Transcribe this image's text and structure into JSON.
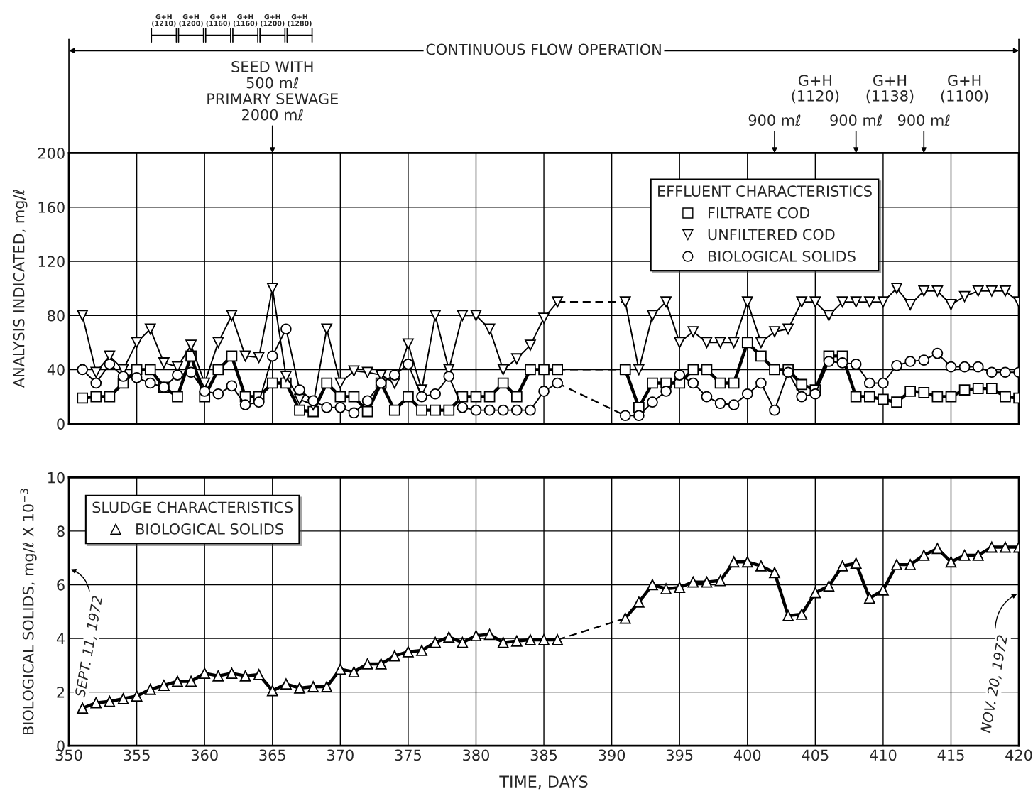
{
  "chart_data": [
    {
      "type": "line",
      "ylabel": "ANALYSIS INDICATED, mg/ℓ",
      "legend_title": "EFFLUENT CHARACTERISTICS",
      "legend": "top right",
      "grid": true,
      "tick_labels": "y",
      "xlim": [
        350,
        420
      ],
      "xticks": [
        350,
        355,
        360,
        365,
        370,
        375,
        380,
        385,
        390,
        395,
        400,
        405,
        410,
        415,
        420
      ],
      "ylim": [
        0,
        200
      ],
      "yticks": [
        0,
        40,
        80,
        120,
        160,
        200
      ],
      "x": [
        351,
        352,
        353,
        354,
        355,
        356,
        357,
        358,
        359,
        360,
        361,
        362,
        363,
        364,
        365,
        366,
        367,
        368,
        369,
        370,
        371,
        372,
        373,
        374,
        375,
        376,
        377,
        378,
        379,
        380,
        381,
        382,
        383,
        384,
        385,
        386,
        387,
        388,
        389,
        390,
        391,
        392,
        393,
        394,
        395,
        396,
        397,
        398,
        399,
        400,
        401,
        402,
        403,
        404,
        405,
        406,
        407,
        408,
        409,
        410,
        411,
        412,
        413,
        414,
        415,
        416,
        417,
        418,
        419,
        420
      ],
      "series": [
        {
          "name": "FILTRATE COD",
          "color": "#000000",
          "marker": "square",
          "values": [
            19,
            20,
            20,
            30,
            40,
            40,
            27,
            20,
            50,
            20,
            40,
            50,
            20,
            20,
            30,
            30,
            10,
            9,
            30,
            20,
            20,
            9,
            30,
            10,
            20,
            10,
            10,
            10,
            20,
            20,
            20,
            30,
            20,
            40,
            40,
            40,
            null,
            null,
            null,
            null,
            40,
            12,
            30,
            30,
            30,
            40,
            40,
            30,
            30,
            60,
            50,
            40,
            40,
            29,
            25,
            50,
            50,
            20,
            20,
            18,
            16,
            24,
            23,
            20,
            20,
            25,
            26,
            26,
            20,
            19
          ]
        },
        {
          "name": "UNFILTERED COD",
          "color": "#000000",
          "marker": "triangle_down",
          "values": [
            80,
            38,
            50,
            40,
            60,
            70,
            45,
            42,
            58,
            30,
            60,
            80,
            50,
            49,
            100,
            35,
            18,
            14,
            70,
            30,
            39,
            38,
            36,
            30,
            59,
            25,
            80,
            40,
            80,
            80,
            70,
            40,
            48,
            58,
            78,
            90,
            null,
            null,
            null,
            null,
            90,
            40,
            80,
            90,
            60,
            68,
            60,
            60,
            60,
            90,
            60,
            68,
            70,
            90,
            90,
            80,
            90,
            90,
            90,
            90,
            100,
            88,
            98,
            98,
            88,
            94,
            98,
            98,
            98,
            90
          ]
        },
        {
          "name": "BIOLOGICAL SOLIDS",
          "color": "#000000",
          "marker": "circle",
          "values": [
            40,
            30,
            44,
            35,
            34,
            30,
            27,
            36,
            38,
            24,
            22,
            28,
            14,
            16,
            50,
            70,
            25,
            17,
            12,
            12,
            8,
            17,
            30,
            36,
            44,
            20,
            22,
            35,
            12,
            10,
            10,
            10,
            10,
            10,
            24,
            30,
            null,
            null,
            null,
            null,
            6,
            6,
            16,
            24,
            36,
            30,
            20,
            15,
            14,
            22,
            30,
            10,
            38,
            20,
            22,
            46,
            45,
            44,
            30,
            30,
            43,
            46,
            47,
            52,
            42,
            42,
            42,
            38,
            38,
            38
          ]
        }
      ],
      "annotations": [
        "CONTINUOUS FLOW OPERATION",
        "G+H\n(1210)",
        "G+H\n(1200)",
        "G+H\n(1160)",
        "G+H\n(1160)",
        "G+H\n(1200)",
        "G+H\n(1280)",
        "SEED WITH\n500 mℓ\nPRIMARY SEWAGE\n2000 mℓ",
        "G+H\n(1120)",
        "900 mℓ",
        "G+H\n(1138)",
        "900 mℓ",
        "900 mℓ",
        "G+H\n(1100)"
      ]
    },
    {
      "type": "line",
      "xlabel": "TIME, DAYS",
      "ylabel": "BIOLOGICAL SOLIDS, mg/ℓ X 10$^{−3}$",
      "legend_title": "SLUDGE CHARACTERISTICS",
      "legend": "top left",
      "grid": true,
      "xlim": [
        350,
        420
      ],
      "xticks": [
        350,
        355,
        360,
        365,
        370,
        375,
        380,
        385,
        390,
        395,
        400,
        405,
        410,
        415,
        420
      ],
      "ylim": [
        0,
        10
      ],
      "yticks": [
        0,
        2,
        4,
        6,
        8,
        10
      ],
      "x": [
        351,
        352,
        353,
        354,
        355,
        356,
        357,
        358,
        359,
        360,
        361,
        362,
        363,
        364,
        365,
        366,
        367,
        368,
        369,
        370,
        371,
        372,
        373,
        374,
        375,
        376,
        377,
        378,
        379,
        380,
        381,
        382,
        383,
        384,
        385,
        386,
        387,
        388,
        389,
        390,
        391,
        392,
        393,
        394,
        395,
        396,
        397,
        398,
        399,
        400,
        401,
        402,
        403,
        404,
        405,
        406,
        407,
        408,
        409,
        410,
        411,
        412,
        413,
        414,
        415,
        416,
        417,
        418,
        419,
        420
      ],
      "series": [
        {
          "name": "BIOLOGICAL SOLIDS",
          "color": "#000000",
          "marker": "triangle",
          "values": [
            1.4,
            1.6,
            1.65,
            1.75,
            1.85,
            2.1,
            2.25,
            2.4,
            2.4,
            2.7,
            2.6,
            2.7,
            2.6,
            2.65,
            2.05,
            2.3,
            2.15,
            2.2,
            2.2,
            2.85,
            2.75,
            3.05,
            3.05,
            3.35,
            3.5,
            3.55,
            3.85,
            4.05,
            3.85,
            4.1,
            4.15,
            3.85,
            3.9,
            3.95,
            3.95,
            3.95,
            null,
            null,
            null,
            null,
            4.75,
            5.35,
            6.0,
            5.85,
            5.9,
            6.1,
            6.1,
            6.15,
            6.85,
            6.85,
            6.7,
            6.45,
            4.85,
            4.9,
            5.7,
            5.95,
            6.7,
            6.8,
            5.5,
            5.8,
            6.75,
            6.75,
            7.1,
            7.35,
            6.85,
            7.1,
            7.1,
            7.4,
            7.4,
            7.4
          ]
        }
      ],
      "annotations": [
        "SEPT. 11, 1972",
        "NOV. 20, 1972"
      ]
    }
  ]
}
